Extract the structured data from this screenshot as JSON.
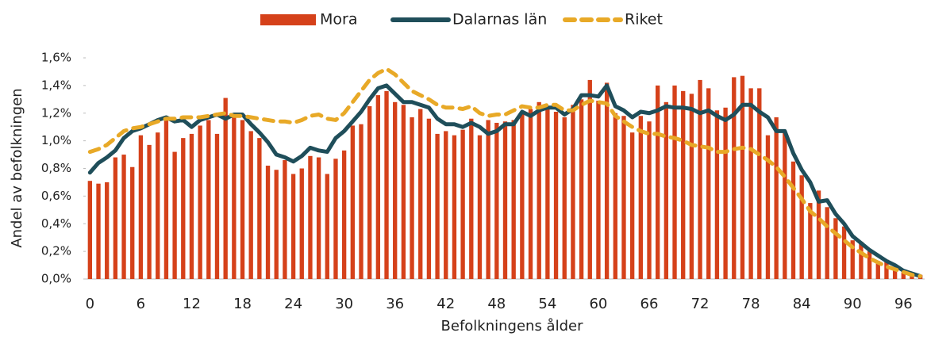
{
  "chart_data": {
    "type": "bar",
    "xlabel": "Befolkningens ålder",
    "ylabel": "Andel av befolkningen",
    "categories": [
      "0",
      null,
      null,
      null,
      null,
      null,
      "6",
      null,
      null,
      null,
      null,
      null,
      "12",
      null,
      null,
      null,
      null,
      null,
      "18",
      null,
      null,
      null,
      null,
      null,
      "24",
      null,
      null,
      null,
      null,
      null,
      "30",
      null,
      null,
      null,
      null,
      null,
      "36",
      null,
      null,
      null,
      null,
      null,
      "42",
      null,
      null,
      null,
      null,
      null,
      "48",
      null,
      null,
      null,
      null,
      null,
      "54",
      null,
      null,
      null,
      null,
      null,
      "60",
      null,
      null,
      null,
      null,
      null,
      "66",
      null,
      null,
      null,
      null,
      null,
      "72",
      null,
      null,
      null,
      null,
      null,
      "78",
      null,
      null,
      null,
      null,
      null,
      "84",
      null,
      null,
      null,
      null,
      null,
      "90",
      null,
      null,
      null,
      null,
      null,
      "96",
      null,
      null
    ],
    "series": [
      {
        "name": "Mora",
        "type": "bar",
        "color": "#d5411a",
        "values": [
          0.71,
          0.69,
          0.7,
          0.88,
          0.9,
          0.81,
          1.04,
          0.97,
          1.06,
          1.17,
          0.92,
          1.02,
          1.05,
          1.11,
          1.15,
          1.05,
          1.31,
          1.2,
          1.15,
          1.07,
          1.02,
          0.82,
          0.79,
          0.86,
          0.76,
          0.8,
          0.89,
          0.88,
          0.76,
          0.87,
          0.93,
          1.11,
          1.12,
          1.25,
          1.33,
          1.36,
          1.28,
          1.26,
          1.17,
          1.23,
          1.16,
          1.05,
          1.07,
          1.04,
          1.08,
          1.16,
          1.04,
          1.15,
          1.13,
          1.14,
          1.15,
          1.2,
          1.23,
          1.28,
          1.25,
          1.21,
          1.17,
          1.26,
          1.3,
          1.44,
          1.29,
          1.42,
          1.2,
          1.18,
          1.06,
          1.18,
          1.14,
          1.4,
          1.28,
          1.4,
          1.36,
          1.34,
          1.44,
          1.38,
          1.22,
          1.24,
          1.46,
          1.47,
          1.38,
          1.38,
          1.04,
          1.17,
          1.06,
          0.85,
          0.75,
          0.55,
          0.64,
          0.52,
          0.44,
          0.38,
          0.28,
          0.27,
          0.2,
          0.13,
          0.14,
          0.08,
          0.05,
          0.04,
          0.03
        ]
      },
      {
        "name": "Dalarnas län",
        "type": "line",
        "color": "#1f4e5a",
        "values": [
          0.77,
          0.84,
          0.88,
          0.93,
          1.02,
          1.07,
          1.09,
          1.12,
          1.15,
          1.17,
          1.14,
          1.15,
          1.1,
          1.15,
          1.17,
          1.19,
          1.16,
          1.19,
          1.19,
          1.12,
          1.06,
          0.99,
          0.9,
          0.88,
          0.85,
          0.89,
          0.95,
          0.93,
          0.92,
          1.02,
          1.07,
          1.14,
          1.21,
          1.3,
          1.38,
          1.4,
          1.34,
          1.28,
          1.28,
          1.26,
          1.24,
          1.16,
          1.12,
          1.12,
          1.1,
          1.13,
          1.1,
          1.05,
          1.07,
          1.12,
          1.12,
          1.21,
          1.18,
          1.22,
          1.24,
          1.24,
          1.19,
          1.23,
          1.33,
          1.33,
          1.32,
          1.4,
          1.25,
          1.22,
          1.17,
          1.21,
          1.2,
          1.22,
          1.25,
          1.24,
          1.24,
          1.23,
          1.2,
          1.22,
          1.18,
          1.15,
          1.19,
          1.26,
          1.26,
          1.21,
          1.17,
          1.07,
          1.07,
          0.91,
          0.79,
          0.7,
          0.56,
          0.57,
          0.47,
          0.4,
          0.31,
          0.26,
          0.21,
          0.17,
          0.13,
          0.1,
          0.06,
          0.04,
          0.02
        ]
      },
      {
        "name": "Riket",
        "type": "line",
        "dashed": true,
        "color": "#e8a927",
        "values": [
          0.92,
          0.94,
          0.97,
          1.02,
          1.07,
          1.09,
          1.1,
          1.12,
          1.14,
          1.16,
          1.16,
          1.17,
          1.17,
          1.17,
          1.18,
          1.19,
          1.2,
          1.18,
          1.18,
          1.17,
          1.16,
          1.15,
          1.14,
          1.14,
          1.13,
          1.15,
          1.18,
          1.19,
          1.16,
          1.15,
          1.2,
          1.28,
          1.36,
          1.44,
          1.49,
          1.52,
          1.48,
          1.42,
          1.36,
          1.33,
          1.3,
          1.26,
          1.24,
          1.24,
          1.23,
          1.25,
          1.2,
          1.18,
          1.19,
          1.19,
          1.22,
          1.25,
          1.24,
          1.24,
          1.26,
          1.26,
          1.22,
          1.22,
          1.26,
          1.29,
          1.28,
          1.27,
          1.18,
          1.14,
          1.1,
          1.07,
          1.05,
          1.05,
          1.03,
          1.02,
          1.0,
          0.97,
          0.96,
          0.95,
          0.92,
          0.92,
          0.94,
          0.95,
          0.94,
          0.9,
          0.86,
          0.81,
          0.74,
          0.66,
          0.58,
          0.49,
          0.44,
          0.38,
          0.33,
          0.28,
          0.23,
          0.19,
          0.15,
          0.12,
          0.09,
          0.07,
          0.05,
          0.03,
          0.02
        ]
      }
    ],
    "ylim": [
      0,
      1.6
    ],
    "yticks": [
      {
        "value": 0,
        "label": "0,0%"
      },
      {
        "value": 0.2,
        "label": "0,2%"
      },
      {
        "value": 0.4,
        "label": "0,4%"
      },
      {
        "value": 0.6,
        "label": "0,6%"
      },
      {
        "value": 0.8,
        "label": "0,8%"
      },
      {
        "value": 1.0,
        "label": "1,0%"
      },
      {
        "value": 1.2,
        "label": "1,2%"
      },
      {
        "value": 1.4,
        "label": "1,4%"
      },
      {
        "value": 1.6,
        "label": "1,6%"
      }
    ],
    "legend": "top"
  }
}
